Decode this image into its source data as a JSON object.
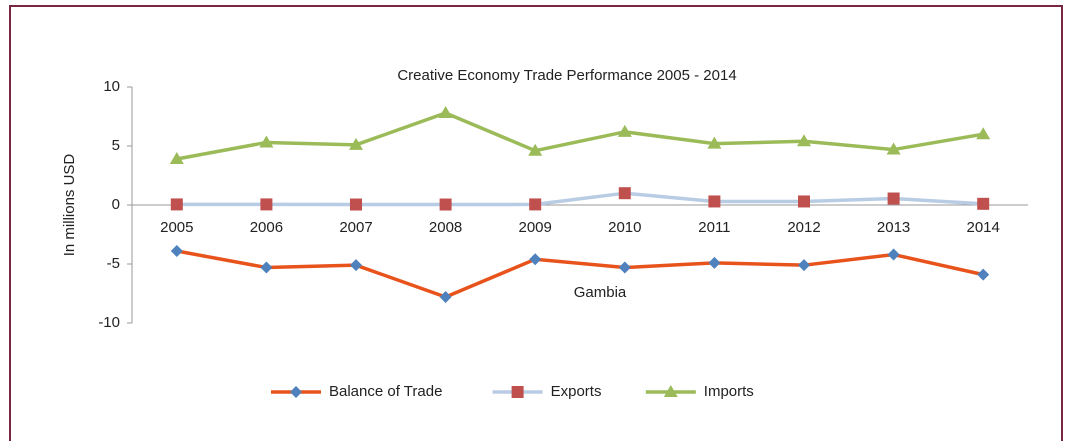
{
  "chart_data": {
    "type": "line",
    "title": "Creative Economy Trade Performance 2005 - 2014",
    "x_label": "Gambia",
    "y_label": "In millions USD",
    "categories": [
      "2005",
      "2006",
      "2007",
      "2008",
      "2009",
      "2010",
      "2011",
      "2012",
      "2013",
      "2014"
    ],
    "series": [
      {
        "name": "Balance of Trade",
        "color": "#e8531c",
        "marker_color": "#4f81bd",
        "marker": "diamond",
        "values": [
          -3.9,
          -5.3,
          -5.1,
          -7.8,
          -4.6,
          -5.3,
          -4.9,
          -5.1,
          -4.2,
          -5.9
        ]
      },
      {
        "name": "Exports",
        "color": "#b8cce4",
        "marker_color": "#c0504d",
        "marker": "square",
        "values": [
          0.05,
          0.05,
          0.04,
          0.04,
          0.05,
          1.0,
          0.3,
          0.3,
          0.55,
          0.1
        ]
      },
      {
        "name": "Imports",
        "color": "#9bbb59",
        "marker_color": "#9bbb59",
        "marker": "triangle",
        "values": [
          3.9,
          5.3,
          5.1,
          7.8,
          4.6,
          6.2,
          5.2,
          5.4,
          4.7,
          6.0
        ]
      }
    ],
    "ylim": [
      -10,
      10
    ],
    "yticks": [
      -10,
      -5,
      0,
      5,
      10
    ],
    "grid": false,
    "legend": "bottom"
  }
}
